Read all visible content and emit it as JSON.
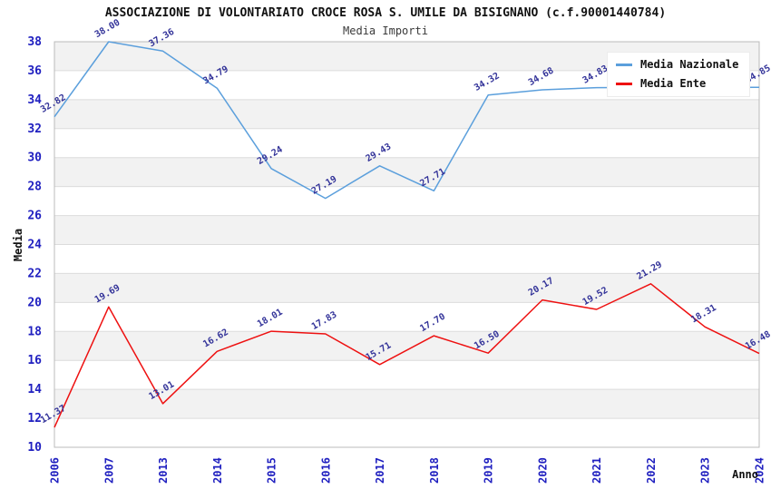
{
  "chart_data": {
    "type": "line",
    "title": "ASSOCIAZIONE DI VOLONTARIATO CROCE ROSA S. UMILE DA BISIGNANO (c.f.90001440784)",
    "subtitle": "Media Importi",
    "xlabel": "Anno",
    "ylabel": "Media",
    "ylim": [
      10,
      38
    ],
    "y_ticks": [
      38,
      36,
      34,
      32,
      30,
      28,
      26,
      24,
      22,
      20,
      18,
      16,
      14,
      12,
      10
    ],
    "categories": [
      "2006",
      "2007",
      "2013",
      "2014",
      "2015",
      "2016",
      "2017",
      "2018",
      "2019",
      "2020",
      "2021",
      "2022",
      "2023",
      "2024"
    ],
    "grid": true,
    "legend_position": "top-right",
    "colors": {
      "band_gray": "#F2F2F2",
      "band_white": "#FFFFFF",
      "gridline": "#DCDCDC",
      "plot_border": "#BBBBBB",
      "tick_label": "#2020C0",
      "point_label": "#333399",
      "axis_title": "#111111"
    },
    "series": [
      {
        "name": "Media Nazionale",
        "color": "#5B9FDC",
        "values": [
          32.82,
          38.0,
          37.36,
          34.79,
          29.24,
          27.19,
          29.43,
          27.71,
          34.32,
          34.68,
          34.83,
          34.84,
          34.84,
          34.85
        ],
        "point_labels": [
          "32.82",
          "38.00",
          "37.36",
          "34.79",
          "29.24",
          "27.19",
          "29.43",
          "27.71",
          "34.32",
          "34.68",
          "34.83",
          null,
          null,
          "34.85"
        ]
      },
      {
        "name": "Media Ente",
        "color": "#EE1111",
        "values": [
          11.37,
          19.69,
          13.01,
          16.62,
          18.01,
          17.83,
          15.71,
          17.7,
          16.5,
          20.17,
          19.52,
          21.29,
          18.31,
          16.48
        ],
        "point_labels": [
          "11.37",
          "19.69",
          "13.01",
          "16.62",
          "18.01",
          "17.83",
          "15.71",
          "17.70",
          "16.50",
          "20.17",
          "19.52",
          "21.29",
          "18.31",
          "16.48"
        ]
      }
    ]
  }
}
